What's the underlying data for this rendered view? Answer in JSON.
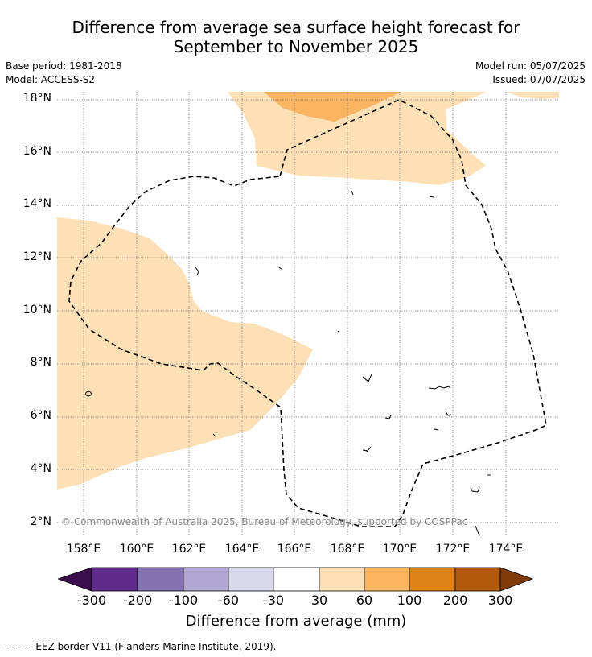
{
  "title": {
    "line1": "Difference from average sea surface height forecast for",
    "line2": "September to November 2025"
  },
  "info": {
    "base_period": "Base period: 1981-2018",
    "model": "Model: ACCESS-S2",
    "model_run": "Model run: 05/07/2025",
    "issued": "Issued: 07/07/2025"
  },
  "map": {
    "lat_labels": [
      "18°N",
      "16°N",
      "14°N",
      "12°N",
      "10°N",
      "8°N",
      "6°N",
      "4°N",
      "2°N"
    ],
    "lon_labels": [
      "158°E",
      "160°E",
      "162°E",
      "164°E",
      "166°E",
      "168°E",
      "170°E",
      "172°E",
      "174°E"
    ],
    "copyright": "© Commonwealth of Australia 2025, Bureau of Meteorology, supported by COSPPac",
    "colors": {
      "band_30_60": "#fde0b6",
      "band_60_100": "#fbb462",
      "neutral": "#ffffff"
    }
  },
  "colorbar": {
    "labels": [
      "-300",
      "-200",
      "-100",
      "-60",
      "-30",
      "30",
      "60",
      "100",
      "200",
      "300"
    ],
    "colors": [
      "#3b0f4f",
      "#5e2b8b",
      "#8473b3",
      "#b2a7d3",
      "#d9d8ec",
      "#ffffff",
      "#fde0b6",
      "#fbb462",
      "#e08317",
      "#b25a09",
      "#7f3b08"
    ],
    "title": "Difference from average (mm)"
  },
  "footnote": "-- -- -- EEZ border V11 (Flanders Marine Institute, 2019)."
}
